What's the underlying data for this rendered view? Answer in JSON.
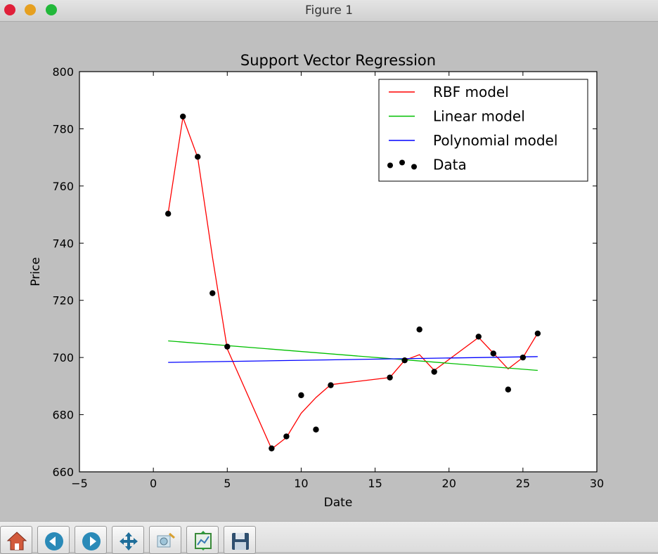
{
  "window": {
    "title": "Figure 1"
  },
  "toolbar": {
    "buttons": [
      {
        "name": "home-button",
        "icon": "home-icon"
      },
      {
        "name": "back-button",
        "icon": "back-arrow-icon"
      },
      {
        "name": "forward-button",
        "icon": "forward-arrow-icon"
      },
      {
        "name": "pan-button",
        "icon": "move-icon"
      },
      {
        "name": "zoom-button",
        "icon": "zoom-rect-icon"
      },
      {
        "name": "configure-subplots-button",
        "icon": "subplots-icon"
      },
      {
        "name": "save-button",
        "icon": "save-icon"
      }
    ]
  },
  "chart_data": {
    "type": "line",
    "title": "Support Vector Regression",
    "xlabel": "Date",
    "ylabel": "Price",
    "xlim": [
      -5,
      30
    ],
    "ylim": [
      660,
      800
    ],
    "xticks": [
      -5,
      0,
      5,
      10,
      15,
      20,
      25,
      30
    ],
    "yticks": [
      660,
      680,
      700,
      720,
      740,
      760,
      780,
      800
    ],
    "xtick_labels": [
      "−5",
      "0",
      "5",
      "10",
      "15",
      "20",
      "25",
      "30"
    ],
    "ytick_labels": [
      "660",
      "680",
      "700",
      "720",
      "740",
      "760",
      "780",
      "800"
    ],
    "grid": false,
    "legend_position": "top-right",
    "series": [
      {
        "name": "RBF model",
        "kind": "line",
        "color": "#ff0000",
        "x": [
          1,
          2,
          3,
          4,
          5,
          8,
          9,
          10,
          11,
          12,
          16,
          17,
          18,
          19,
          22,
          23,
          24,
          25,
          26
        ],
        "y": [
          750.5,
          784.0,
          770.0,
          735.0,
          703.0,
          668.0,
          672.0,
          680.5,
          686.0,
          690.5,
          693.0,
          699.0,
          701.0,
          695.5,
          707.0,
          701.5,
          696.0,
          700.0,
          708.5
        ]
      },
      {
        "name": "Linear model",
        "kind": "line",
        "color": "#00bf00",
        "x": [
          1,
          26
        ],
        "y": [
          705.8,
          695.5
        ]
      },
      {
        "name": "Polynomial model",
        "kind": "line",
        "color": "#0000ff",
        "x": [
          1,
          26
        ],
        "y": [
          698.3,
          700.3
        ]
      },
      {
        "name": "Data",
        "kind": "scatter",
        "color": "#000000",
        "x": [
          1,
          2,
          3,
          4,
          5,
          8,
          9,
          10,
          11,
          12,
          16,
          17,
          18,
          19,
          22,
          23,
          24,
          25,
          26
        ],
        "y": [
          750.3,
          784.3,
          770.2,
          722.5,
          703.8,
          668.2,
          672.4,
          686.8,
          674.8,
          690.3,
          693.0,
          699.0,
          709.8,
          695.0,
          707.3,
          701.4,
          688.8,
          700.0,
          708.4
        ]
      }
    ]
  }
}
